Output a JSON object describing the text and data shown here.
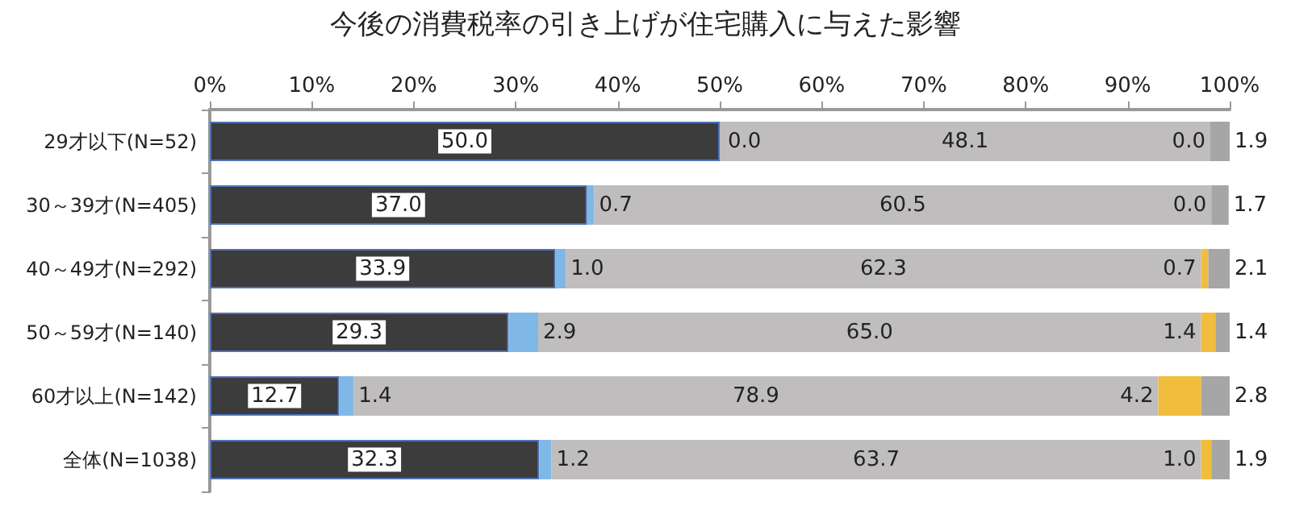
{
  "chart_data": {
    "type": "bar",
    "orientation": "horizontal",
    "stacked": true,
    "title": "今後の消費税率の引き上げが住宅購入に与えた影響",
    "categories": [
      "29才以下(N=52)",
      "30～39才(N=405)",
      "40～49才(N=292)",
      "50～59才(N=140)",
      "60才以上(N=142)",
      "全体(N=1038)"
    ],
    "series": [
      {
        "color": "#3c3c3c",
        "values": [
          50.0,
          37.0,
          33.9,
          29.3,
          12.7,
          32.3
        ],
        "value_labels": [
          "50.0",
          "37.0",
          "33.9",
          "29.3",
          "12.7",
          "32.3"
        ]
      },
      {
        "color": "#7fb8e6",
        "values": [
          0.0,
          0.7,
          1.0,
          2.9,
          1.4,
          1.2
        ],
        "value_labels": [
          "0.0",
          "0.7",
          "1.0",
          "2.9",
          "1.4",
          "1.2"
        ]
      },
      {
        "color": "#bfbdbd",
        "values": [
          48.1,
          60.5,
          62.3,
          65.0,
          78.9,
          63.7
        ],
        "value_labels": [
          "48.1",
          "60.5",
          "62.3",
          "65.0",
          "78.9",
          "63.7"
        ]
      },
      {
        "color": "#f0bd3c",
        "values": [
          0.0,
          0.0,
          0.7,
          1.4,
          4.2,
          1.0
        ],
        "value_labels": [
          "0.0",
          "0.0",
          "0.7",
          "1.4",
          "4.2",
          "1.0"
        ]
      },
      {
        "color": "#a6a6a6",
        "values": [
          1.9,
          1.7,
          2.1,
          1.4,
          2.8,
          1.9
        ],
        "value_labels": [
          "1.9",
          "1.7",
          "2.1",
          "1.4",
          "2.8",
          "1.9"
        ]
      }
    ],
    "xlim": [
      0,
      100
    ],
    "xticks": [
      {
        "value": 0,
        "label": "0%"
      },
      {
        "value": 10,
        "label": "10%"
      },
      {
        "value": 20,
        "label": "20%"
      },
      {
        "value": 30,
        "label": "30%"
      },
      {
        "value": 40,
        "label": "40%"
      },
      {
        "value": 50,
        "label": "50%"
      },
      {
        "value": 60,
        "label": "60%"
      },
      {
        "value": 70,
        "label": "70%"
      },
      {
        "value": 80,
        "label": "80%"
      },
      {
        "value": 90,
        "label": "90%"
      },
      {
        "value": 100,
        "label": "100%"
      }
    ],
    "grid": false
  }
}
